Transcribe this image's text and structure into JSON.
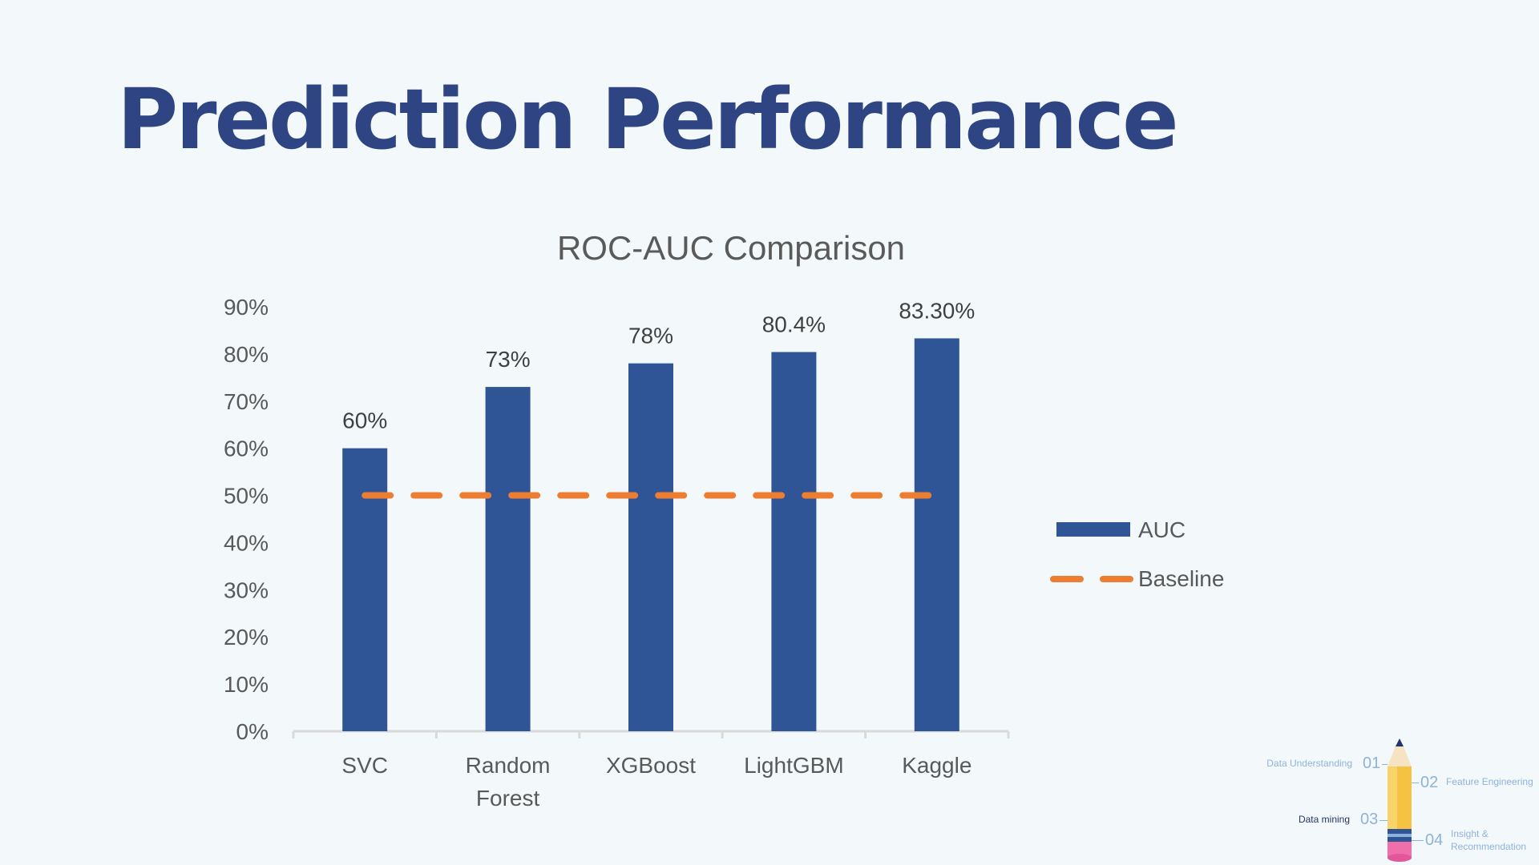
{
  "slide": {
    "title": "Prediction Performance"
  },
  "chart_data": {
    "type": "bar",
    "title": "ROC-AUC Comparison",
    "categories": [
      "SVC",
      "Random Forest",
      "XGBoost",
      "LightGBM",
      "Kaggle"
    ],
    "category_lines": [
      [
        "SVC"
      ],
      [
        "Random",
        "Forest"
      ],
      [
        "XGBoost"
      ],
      [
        "LightGBM"
      ],
      [
        "Kaggle"
      ]
    ],
    "series": [
      {
        "name": "AUC",
        "type": "bar",
        "values": [
          0.6,
          0.73,
          0.78,
          0.804,
          0.833
        ],
        "data_labels": [
          "60%",
          "73%",
          "78%",
          "80.4%",
          "83.30%"
        ],
        "color": "#2f5597"
      },
      {
        "name": "Baseline",
        "type": "line",
        "style": "dashed",
        "values": [
          0.5,
          0.5,
          0.5,
          0.5,
          0.5
        ],
        "color": "#ed7d31"
      }
    ],
    "ylim": [
      0,
      0.9
    ],
    "y_ticks": [
      0,
      0.1,
      0.2,
      0.3,
      0.4,
      0.5,
      0.6,
      0.7,
      0.8,
      0.9
    ],
    "y_tick_labels": [
      "0%",
      "10%",
      "20%",
      "30%",
      "40%",
      "50%",
      "60%",
      "70%",
      "80%",
      "90%"
    ],
    "grid": false,
    "legend_position": "right"
  },
  "progress_nav": {
    "steps": [
      {
        "number": "01",
        "label": "Data Understanding",
        "active": false
      },
      {
        "number": "02",
        "label": "Feature Engineering",
        "active": false
      },
      {
        "number": "03",
        "label": "Data mining",
        "active": true
      },
      {
        "number": "04",
        "label": "Insight & Recommendation",
        "active": false
      }
    ],
    "step4_lines": [
      "Insight &",
      "Recommendation"
    ],
    "colors": {
      "inactive": "#8fb2dc",
      "active": "#23346e"
    }
  }
}
